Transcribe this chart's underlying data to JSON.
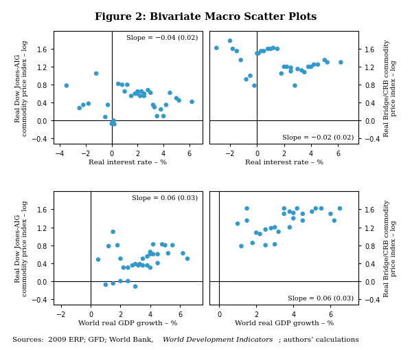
{
  "title": "Figure 2: Bivariate Macro Scatter Plots",
  "dot_color": "#3399cc",
  "dot_size": 22,
  "panel_top_left": {
    "xlabel": "Real interest rate – %",
    "ylabel": "Real Dow Jones-AIG\ncommodity price index – log",
    "slope_text": "Slope = −0.04 (0.02)",
    "slope_loc": "upper right",
    "xlim": [
      -4.5,
      7.0
    ],
    "ylim": [
      -0.52,
      2.0
    ],
    "xticks": [
      -4,
      -2,
      0,
      2,
      4,
      6
    ],
    "yticks": [
      -0.4,
      0.0,
      0.4,
      0.8,
      1.2,
      1.6
    ],
    "x": [
      -3.5,
      -2.5,
      -2.2,
      -1.8,
      -1.2,
      -0.5,
      -0.3,
      0.0,
      0.05,
      0.15,
      0.2,
      0.5,
      0.8,
      1.0,
      1.2,
      1.5,
      1.8,
      2.0,
      2.0,
      2.2,
      2.3,
      2.5,
      2.5,
      2.8,
      3.0,
      3.2,
      3.3,
      3.5,
      3.8,
      4.0,
      4.2,
      4.5,
      5.0,
      5.2,
      6.2
    ],
    "y": [
      0.78,
      0.28,
      0.35,
      0.38,
      1.05,
      0.08,
      0.35,
      -0.07,
      -0.05,
      0.0,
      -0.08,
      0.82,
      0.8,
      0.65,
      0.8,
      0.55,
      0.6,
      0.6,
      0.65,
      0.55,
      0.65,
      0.6,
      0.55,
      0.68,
      0.62,
      0.35,
      0.3,
      0.1,
      0.25,
      0.1,
      0.35,
      0.62,
      0.5,
      0.45,
      0.42
    ]
  },
  "panel_top_right": {
    "xlabel": "Real interest rate – %",
    "ylabel": "Real Bridge/CRB commodity\nprice index – log",
    "slope_text": "Slope = −0.02 (0.02)",
    "slope_loc": "lower right",
    "xlim": [
      -3.5,
      7.5
    ],
    "ylim": [
      -0.52,
      2.0
    ],
    "xticks": [
      -2,
      0,
      2,
      4,
      6
    ],
    "yticks": [
      -0.4,
      0.0,
      0.4,
      0.8,
      1.2,
      1.6
    ],
    "x": [
      -3.0,
      -2.0,
      -1.8,
      -1.5,
      -1.2,
      -0.8,
      -0.5,
      -0.2,
      0.0,
      0.1,
      0.3,
      0.5,
      0.8,
      1.0,
      1.2,
      1.5,
      1.8,
      2.0,
      2.2,
      2.5,
      2.5,
      2.8,
      3.0,
      3.3,
      3.5,
      3.8,
      4.0,
      4.2,
      4.5,
      5.0,
      5.2,
      6.2
    ],
    "y": [
      1.62,
      1.78,
      1.6,
      1.55,
      1.35,
      0.92,
      1.0,
      0.78,
      1.5,
      1.5,
      1.55,
      1.55,
      1.6,
      1.6,
      1.62,
      1.6,
      1.05,
      1.2,
      1.2,
      1.18,
      1.1,
      0.78,
      1.15,
      1.12,
      1.08,
      1.2,
      1.2,
      1.25,
      1.25,
      1.35,
      1.3,
      1.3
    ]
  },
  "panel_bot_left": {
    "xlabel": "World real GDP growth – %",
    "ylabel": "Real Dow Jones-AIG\ncommodity price index – log",
    "slope_text": "Slope = 0.06 (0.03)",
    "slope_loc": "upper right",
    "xlim": [
      -2.5,
      7.5
    ],
    "ylim": [
      -0.52,
      2.0
    ],
    "xticks": [
      -2,
      0,
      2,
      4,
      6
    ],
    "yticks": [
      -0.4,
      0.0,
      0.4,
      0.8,
      1.2,
      1.6
    ],
    "x": [
      0.5,
      1.0,
      1.2,
      1.5,
      1.5,
      1.8,
      2.0,
      2.0,
      2.2,
      2.5,
      2.5,
      2.8,
      3.0,
      3.0,
      3.2,
      3.3,
      3.5,
      3.5,
      3.8,
      3.8,
      4.0,
      4.0,
      4.0,
      4.2,
      4.2,
      4.5,
      4.5,
      4.8,
      5.0,
      5.2,
      5.5,
      6.2,
      6.5
    ],
    "y": [
      0.48,
      -0.08,
      0.78,
      -0.05,
      1.1,
      0.8,
      0.5,
      0.0,
      0.3,
      0.3,
      0.0,
      0.35,
      0.38,
      -0.12,
      0.35,
      0.38,
      0.5,
      0.35,
      0.55,
      0.35,
      0.6,
      0.3,
      0.65,
      0.6,
      0.82,
      0.6,
      0.4,
      0.82,
      0.8,
      0.62,
      0.8,
      0.62,
      0.5
    ]
  },
  "panel_bot_right": {
    "xlabel": "World real GDP growth – %",
    "ylabel": "Real Bridge/CRB commodity\nprice index – log",
    "slope_text": "Slope = 0.06 (0.03)",
    "slope_loc": "lower right",
    "xlim": [
      -0.5,
      7.5
    ],
    "ylim": [
      -0.52,
      2.0
    ],
    "xticks": [
      0,
      2,
      4,
      6
    ],
    "yticks": [
      -0.4,
      0.0,
      0.4,
      0.8,
      1.2,
      1.6
    ],
    "x": [
      1.0,
      1.2,
      1.5,
      1.5,
      1.8,
      2.0,
      2.2,
      2.5,
      2.5,
      2.8,
      3.0,
      3.0,
      3.2,
      3.5,
      3.5,
      3.8,
      3.8,
      4.0,
      4.0,
      4.2,
      4.5,
      4.5,
      5.0,
      5.2,
      5.5,
      6.0,
      6.2,
      6.5
    ],
    "y": [
      1.28,
      0.78,
      1.35,
      1.62,
      0.85,
      1.08,
      1.05,
      1.15,
      0.8,
      1.18,
      1.2,
      0.82,
      1.1,
      1.62,
      1.5,
      1.55,
      1.2,
      1.52,
      1.4,
      1.62,
      1.5,
      1.35,
      1.55,
      1.62,
      1.62,
      1.5,
      1.35,
      1.62
    ]
  }
}
